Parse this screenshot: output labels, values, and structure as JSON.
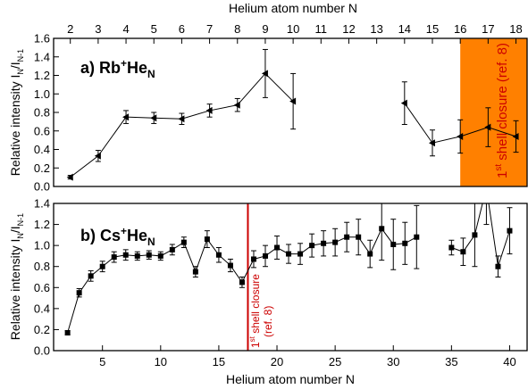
{
  "chart_data": [
    {
      "type": "line",
      "panel": "a",
      "panel_label": {
        "prefix": "a) Rb",
        "sup": "+",
        "mid": "He",
        "sub": "N"
      },
      "top_xlabel": "Helium atom number N",
      "ylabel": {
        "main": "Relative intensity I",
        "sub1": "N",
        "slash": "/I",
        "sub2": "N-1"
      },
      "xlim": [
        1.4,
        18.4
      ],
      "ylim": [
        0,
        1.6
      ],
      "xticks": [
        2,
        3,
        4,
        5,
        6,
        7,
        8,
        9,
        10,
        11,
        12,
        13,
        14,
        15,
        16,
        17,
        18
      ],
      "yticks": [
        "0.0",
        "0.2",
        "0.4",
        "0.6",
        "0.8",
        "1.0",
        "1.2",
        "1.4",
        "1.6"
      ],
      "shaded_region": {
        "x0": 16,
        "x1": 18.4,
        "color": "#ff8000"
      },
      "annotation": {
        "text": "1",
        "sup": "st",
        "rest": " shell closure (ref. 8)",
        "color": "#cc0000"
      },
      "marker": "triangle-left",
      "segments": [
        [
          {
            "x": 2,
            "y": 0.1,
            "err": 0.02
          },
          {
            "x": 3,
            "y": 0.33,
            "err": 0.06
          },
          {
            "x": 4,
            "y": 0.75,
            "err": 0.07
          },
          {
            "x": 5,
            "y": 0.74,
            "err": 0.06
          },
          {
            "x": 6,
            "y": 0.73,
            "err": 0.06
          },
          {
            "x": 7,
            "y": 0.82,
            "err": 0.07
          },
          {
            "x": 8,
            "y": 0.88,
            "err": 0.07
          },
          {
            "x": 9,
            "y": 1.22,
            "err": 0.26
          },
          {
            "x": 10,
            "y": 0.92,
            "err": 0.3
          }
        ],
        [
          {
            "x": 14,
            "y": 0.9,
            "err": 0.23
          },
          {
            "x": 15,
            "y": 0.47,
            "err": 0.14
          },
          {
            "x": 16,
            "y": 0.54,
            "err": 0.18
          },
          {
            "x": 17,
            "y": 0.64,
            "err": 0.21
          },
          {
            "x": 18,
            "y": 0.54,
            "err": 0.17
          }
        ]
      ]
    },
    {
      "type": "line",
      "panel": "b",
      "panel_label": {
        "prefix": "b) Cs",
        "sup": "+",
        "mid": "He",
        "sub": "N"
      },
      "xlabel": "Helium atom number N",
      "ylabel": {
        "main": "Relative intensity I",
        "sub1": "N",
        "slash": "/I",
        "sub2": "N-1"
      },
      "xlim": [
        0.8,
        41.5
      ],
      "ylim": [
        0,
        1.4
      ],
      "xticks": [
        5,
        10,
        15,
        20,
        25,
        30,
        35,
        40
      ],
      "yticks": [
        "0.0",
        "0.2",
        "0.4",
        "0.6",
        "0.8",
        "1.0",
        "1.2",
        "1.4"
      ],
      "vline": {
        "x": 17.5,
        "color": "#cc0000"
      },
      "annotation": {
        "line1_a": "1",
        "line1_sup": "st",
        "line1_b": " shell closure",
        "line2": "(ref. 8)",
        "color": "#cc0000"
      },
      "marker": "square",
      "segments": [
        [
          {
            "x": 2,
            "y": 0.17,
            "err": 0.02
          },
          {
            "x": 3,
            "y": 0.55,
            "err": 0.04
          },
          {
            "x": 4,
            "y": 0.71,
            "err": 0.05
          },
          {
            "x": 5,
            "y": 0.8,
            "err": 0.05
          },
          {
            "x": 6,
            "y": 0.89,
            "err": 0.05
          },
          {
            "x": 7,
            "y": 0.91,
            "err": 0.05
          },
          {
            "x": 8,
            "y": 0.9,
            "err": 0.04
          },
          {
            "x": 9,
            "y": 0.91,
            "err": 0.04
          },
          {
            "x": 10,
            "y": 0.9,
            "err": 0.04
          },
          {
            "x": 11,
            "y": 0.96,
            "err": 0.05
          },
          {
            "x": 12,
            "y": 1.03,
            "err": 0.05
          },
          {
            "x": 13,
            "y": 0.75,
            "err": 0.05
          },
          {
            "x": 14,
            "y": 1.06,
            "err": 0.08
          },
          {
            "x": 15,
            "y": 0.91,
            "err": 0.07
          },
          {
            "x": 16,
            "y": 0.81,
            "err": 0.06
          },
          {
            "x": 17,
            "y": 0.65,
            "err": 0.05
          },
          {
            "x": 18,
            "y": 0.87,
            "err": 0.08
          },
          {
            "x": 19,
            "y": 0.9,
            "err": 0.1
          },
          {
            "x": 20,
            "y": 0.98,
            "err": 0.11
          },
          {
            "x": 21,
            "y": 0.92,
            "err": 0.09
          },
          {
            "x": 22,
            "y": 0.92,
            "err": 0.1
          },
          {
            "x": 23,
            "y": 1.0,
            "err": 0.11
          },
          {
            "x": 24,
            "y": 1.02,
            "err": 0.12
          },
          {
            "x": 25,
            "y": 1.03,
            "err": 0.13
          },
          {
            "x": 26,
            "y": 1.08,
            "err": 0.14
          },
          {
            "x": 27,
            "y": 1.08,
            "err": 0.17
          },
          {
            "x": 28,
            "y": 0.92,
            "err": 0.13
          },
          {
            "x": 29,
            "y": 1.16,
            "err": 0.3
          },
          {
            "x": 30,
            "y": 1.01,
            "err": 0.24
          },
          {
            "x": 31,
            "y": 1.02,
            "err": 0.2
          },
          {
            "x": 32,
            "y": 1.08,
            "err": 0.3
          }
        ],
        [
          {
            "x": 35,
            "y": 0.98,
            "err": 0.07
          },
          {
            "x": 36,
            "y": 0.94,
            "err": 0.13
          },
          {
            "x": 37,
            "y": 1.1,
            "err": 0.3
          },
          {
            "x": 38,
            "y": 1.55,
            "err": 0.35
          },
          {
            "x": 39,
            "y": 0.8,
            "err": 0.1
          },
          {
            "x": 40,
            "y": 1.14,
            "err": 0.22
          }
        ]
      ]
    }
  ]
}
